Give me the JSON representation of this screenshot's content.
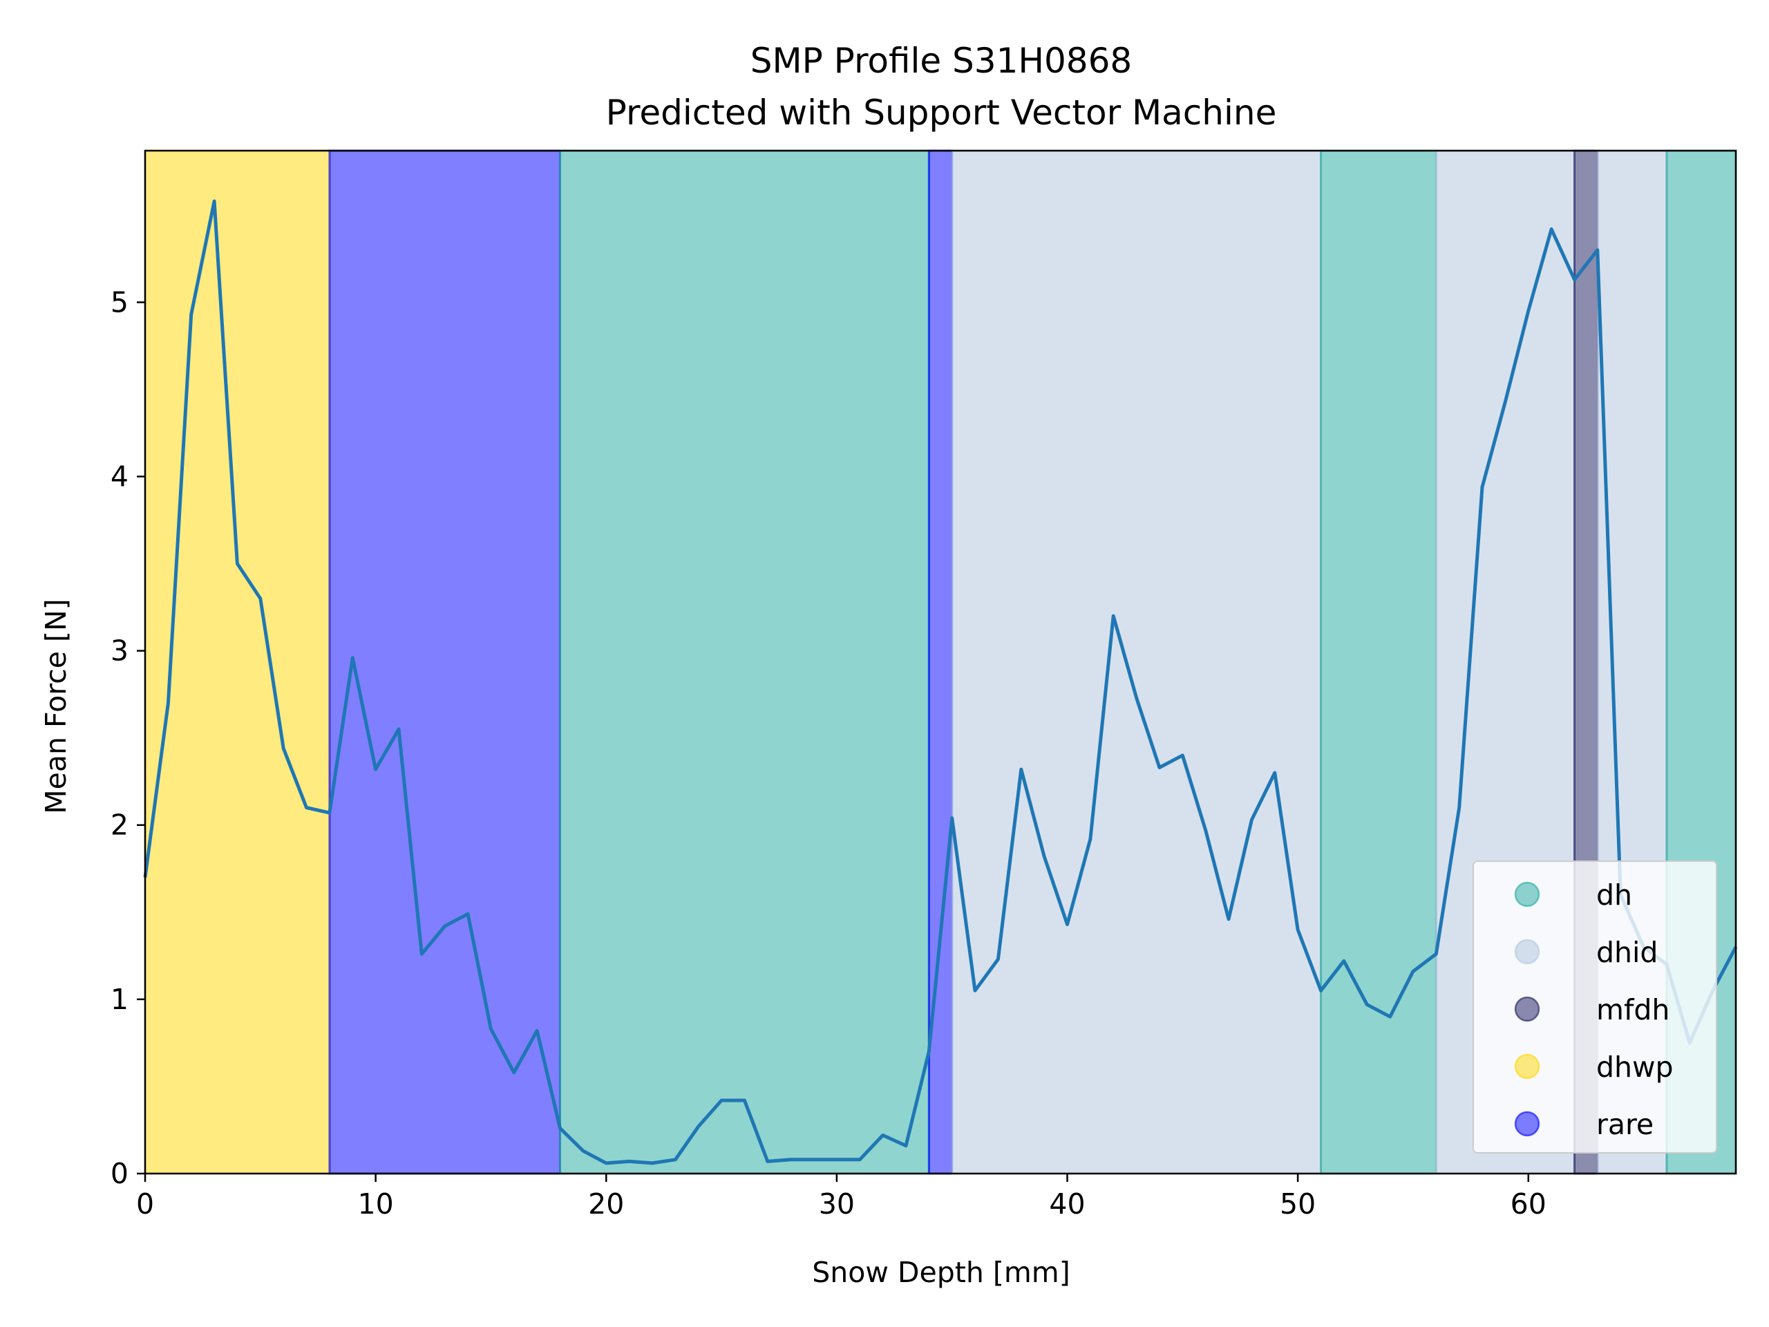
{
  "chart_data": {
    "type": "line",
    "title": "SMP Profile S31H0868",
    "subtitle": "Predicted with Support Vector Machine",
    "xlabel": "Snow Depth [mm]",
    "ylabel": "Mean Force [N]",
    "xlim": [
      0,
      69
    ],
    "ylim": [
      0,
      5.87
    ],
    "xticks": [
      0,
      10,
      20,
      30,
      40,
      50,
      60
    ],
    "yticks": [
      0,
      1,
      2,
      3,
      4,
      5
    ],
    "grid": false,
    "legend_position": "lower-right",
    "line_color": "#1f77b4",
    "series": [
      {
        "x": [
          0,
          1,
          2,
          3,
          4,
          5,
          6,
          7,
          8,
          9,
          10,
          11,
          12,
          13,
          14,
          15,
          16,
          17,
          18,
          19,
          20,
          21,
          22,
          23,
          24,
          25,
          26,
          27,
          28,
          29,
          30,
          31,
          32,
          33,
          34,
          35,
          36,
          37,
          38,
          39,
          40,
          41,
          42,
          43,
          44,
          45,
          46,
          47,
          48,
          49,
          50,
          51,
          52,
          53,
          54,
          55,
          56,
          57,
          58,
          59,
          60,
          61,
          62,
          63,
          64,
          65,
          66,
          67,
          68,
          69
        ],
        "y": [
          1.7,
          2.7,
          4.93,
          5.58,
          3.5,
          3.3,
          2.44,
          2.1,
          2.07,
          2.96,
          2.32,
          2.55,
          1.26,
          1.42,
          1.49,
          0.83,
          0.58,
          0.82,
          0.26,
          0.13,
          0.06,
          0.07,
          0.06,
          0.08,
          0.27,
          0.42,
          0.42,
          0.07,
          0.08,
          0.08,
          0.08,
          0.08,
          0.22,
          0.16,
          0.7,
          2.04,
          1.05,
          1.23,
          2.32,
          1.82,
          1.43,
          1.92,
          3.2,
          2.73,
          2.33,
          2.4,
          1.97,
          1.46,
          2.03,
          2.3,
          1.4,
          1.05,
          1.22,
          0.97,
          0.9,
          1.16,
          1.26,
          2.1,
          3.94,
          4.43,
          4.95,
          5.42,
          5.13,
          5.3,
          1.6,
          1.3,
          1.2,
          0.75,
          1.05,
          1.3
        ]
      }
    ],
    "regions": [
      {
        "label": "dhwp",
        "start": 0,
        "end": 8
      },
      {
        "label": "rare",
        "start": 8,
        "end": 18
      },
      {
        "label": "dh",
        "start": 18,
        "end": 34
      },
      {
        "label": "rare",
        "start": 34,
        "end": 35
      },
      {
        "label": "dhid",
        "start": 35,
        "end": 51
      },
      {
        "label": "dh",
        "start": 51,
        "end": 56
      },
      {
        "label": "dhid",
        "start": 56,
        "end": 62
      },
      {
        "label": "mfdh",
        "start": 62,
        "end": 63
      },
      {
        "label": "dhid",
        "start": 63,
        "end": 66
      },
      {
        "label": "dh",
        "start": 66,
        "end": 69
      }
    ],
    "legend": [
      {
        "label": "dh",
        "color": "#22aa9f",
        "alpha": 0.5
      },
      {
        "label": "dhid",
        "color": "#b0c4de",
        "alpha": 0.5
      },
      {
        "label": "mfdh",
        "color": "#1a1a5e",
        "alpha": 0.5
      },
      {
        "label": "dhwp",
        "color": "#ffd700",
        "alpha": 0.5
      },
      {
        "label": "rare",
        "color": "#0000ff",
        "alpha": 0.5
      }
    ]
  }
}
